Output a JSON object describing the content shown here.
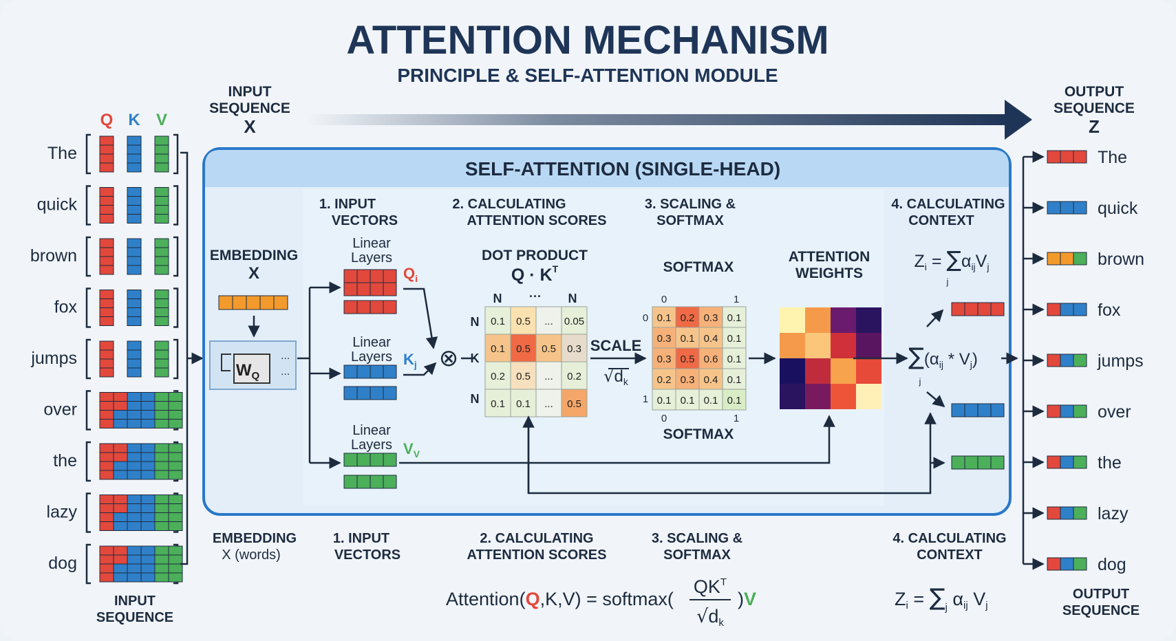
{
  "title": "ATTENTION MECHANISM",
  "subtitle": "PRINCIPLE & SELF-ATTENTION MODULE",
  "input_sequence": {
    "header_lines": [
      "INPUT",
      "SEQUENCE"
    ],
    "header_var": "X",
    "footer_lines": [
      "INPUT",
      "SEQUENCE"
    ],
    "qkv_labels": [
      "Q",
      "K",
      "V"
    ],
    "words": [
      "The",
      "quick",
      "brown",
      "fox",
      "jumps",
      "over",
      "the",
      "lazy",
      "dog"
    ]
  },
  "output_sequence": {
    "header_lines": [
      "OUTPUT",
      "SEQUENCE"
    ],
    "header_var": "Z",
    "footer_lines": [
      "OUTPUT",
      "SEQUENCE"
    ],
    "words": [
      "The",
      "quick",
      "brown",
      "fox",
      "jumps",
      "over",
      "the",
      "lazy",
      "dog"
    ]
  },
  "module_title": "SELF-ATTENTION (SINGLE-HEAD)",
  "embedding": {
    "title_lines": [
      "EMBEDDING",
      "X"
    ],
    "weight_label": "W",
    "weight_sub": "Q",
    "dots": "..."
  },
  "steps_top": [
    [
      "1. INPUT",
      "VECTORS"
    ],
    [
      "2. CALCULATING",
      "ATTENTION SCORES"
    ],
    [
      "3. SCALING &",
      "SOFTMAX"
    ],
    [
      "4. CALCULATING",
      "CONTEXT"
    ]
  ],
  "steps_bottom": [
    [
      "EMBEDDING",
      "X (words)"
    ],
    [
      "1. INPUT",
      "VECTORS"
    ],
    [
      "2. CALCULATING",
      "ATTENTION SCORES"
    ],
    [
      "3. SCALING &",
      "SOFTMAX"
    ],
    [
      "4. CALCULATING",
      "CONTEXT"
    ]
  ],
  "linear_layers": [
    {
      "lines": [
        "Linear",
        "Layers"
      ],
      "out": "Q",
      "sub": "i"
    },
    {
      "lines": [
        "Linear",
        "Layers"
      ],
      "out": "K",
      "sub": "j"
    },
    {
      "lines": [
        "Linear",
        "Layers"
      ],
      "out": "V",
      "sub": "V"
    }
  ],
  "dot_product": {
    "title": "DOT PRODUCT",
    "formula": "Q · K",
    "formula_sup": "T",
    "col_labels": [
      "N",
      "···",
      "N"
    ],
    "row_labels": [
      "N",
      "K",
      "N"
    ],
    "matrix": [
      [
        "0.1",
        "0.5",
        "...",
        "0.05"
      ],
      [
        "0.1",
        "0.5",
        "0.5",
        "0.3"
      ],
      [
        "0.2",
        "0.5",
        "...",
        "0.2"
      ],
      [
        "0.1",
        "0.1",
        "...",
        "0.5"
      ]
    ],
    "multiply_symbol": "⊗"
  },
  "scale": {
    "label": "SCALE",
    "denom": "d",
    "denom_sub": "k",
    "sqrt": "√"
  },
  "softmax": {
    "title": "SOFTMAX",
    "footer": "SOFTMAX",
    "top_ticks": [
      "0",
      "1"
    ],
    "bottom_ticks": [
      "0",
      "1"
    ],
    "left_ticks": [
      "0",
      "1"
    ],
    "matrix": [
      [
        "0.1",
        "0.2",
        "0.3",
        "0.1"
      ],
      [
        "0.3",
        "0.1",
        "0.4",
        "0.1"
      ],
      [
        "0.3",
        "0.5",
        "0.6",
        "0.1"
      ],
      [
        "0.2",
        "0.3",
        "0.4",
        "0.1"
      ],
      [
        "0.1",
        "0.1",
        "0.1",
        "0.1"
      ]
    ]
  },
  "attention_weights": {
    "title_lines": [
      "ATTENTION",
      "WEIGHTS"
    ],
    "heatmap_colors": [
      [
        "#fff3b0",
        "#f59a4a",
        "#6a1b6e",
        "#2a1460"
      ],
      [
        "#f59a4a",
        "#fbc57a",
        "#d0303a",
        "#5a1560"
      ],
      [
        "#1a1060",
        "#c02c3c",
        "#f7a24c",
        "#e84a3a"
      ],
      [
        "#2a1460",
        "#7a1a5e",
        "#ee5538",
        "#fff0b8"
      ]
    ]
  },
  "context": {
    "formula_lhs": "Z",
    "formula_lhs_sub": "i",
    "formula_sum": "∑",
    "formula_sum_sub": "j",
    "formula_rhs": "α",
    "formula_rhs_sub": "ij",
    "formula_v": "V",
    "formula_v_sub": "j",
    "sum_expr": "(α",
    "sum_expr_sub": "ij",
    "sum_expr_rest": " * V",
    "sum_expr_sub2": "j",
    "sum_expr_close": ")"
  },
  "bottom_formula": {
    "prefix": "Attention(",
    "q": "Q",
    "mid": ",K,V) = softmax(",
    "num": "QK",
    "num_sup": "T",
    "den": "d",
    "den_sub": "k",
    "close": ")",
    "v": "V"
  },
  "bottom_context_formula": {
    "lhs": "Z",
    "lhs_sub": "i",
    "eq": " = ",
    "sum": "∑",
    "sum_sub": "j",
    "alpha": " α",
    "alpha_sub": "ij",
    "v": " V",
    "v_sub": "j"
  },
  "colors": {
    "navy": "#1f3557",
    "q_red": "#e2483c",
    "k_blue": "#2f80c9",
    "v_green": "#4caf5a",
    "orange": "#f39a2c",
    "panel_border": "#2a78c8",
    "panel_header": "#b9d8f4",
    "panel_fill": "#e3eef9"
  }
}
